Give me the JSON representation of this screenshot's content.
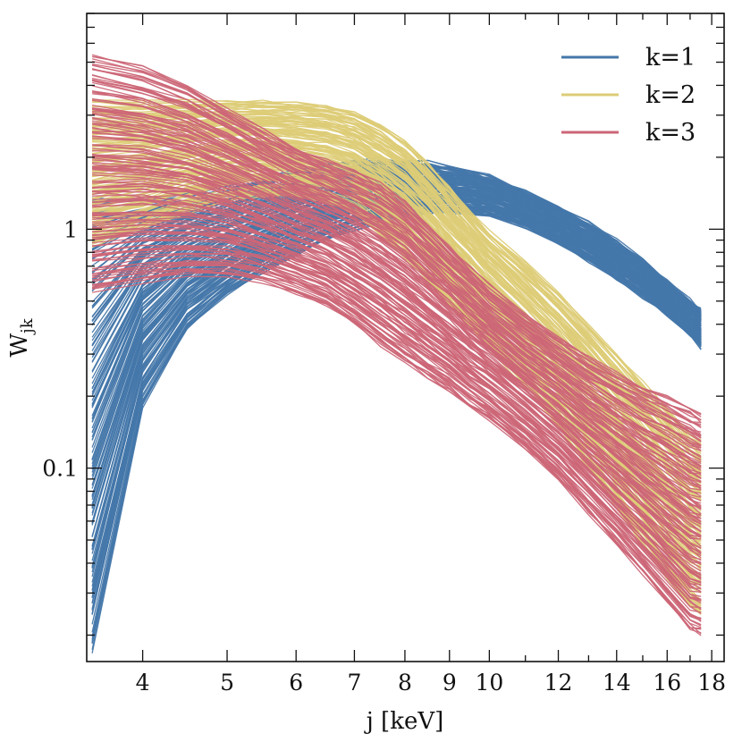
{
  "chart_data": {
    "type": "line",
    "xlabel": "j [keV]",
    "ylabel_main": "W",
    "ylabel_sub": "jk",
    "xscale": "log",
    "yscale": "log",
    "xlim": [
      3.45,
      18.6
    ],
    "ylim": [
      0.0155,
      8.0
    ],
    "x_ticks": [
      4,
      5,
      6,
      7,
      8,
      9,
      10,
      12,
      14,
      16,
      18
    ],
    "x_tick_labels": [
      "4",
      "5",
      "6",
      "7",
      "8",
      "9",
      "10",
      "12",
      "14",
      "16",
      "18"
    ],
    "y_major_ticks": [
      0.1,
      1
    ],
    "y_tick_labels": [
      "0.1",
      "1"
    ],
    "x": [
      3.5,
      4.0,
      4.5,
      5.0,
      5.5,
      6.0,
      6.5,
      7.0,
      7.5,
      8.0,
      8.5,
      9.0,
      9.5,
      10.0,
      11.0,
      12.0,
      13.0,
      14.0,
      15.0,
      16.0,
      17.0,
      17.5
    ],
    "legend_position": "top-right",
    "series": [
      {
        "name": "k=1",
        "color": "#4477aa",
        "band_low": [
          0.017,
          0.18,
          0.38,
          0.53,
          0.66,
          0.78,
          0.9,
          1.0,
          1.08,
          1.14,
          1.17,
          1.18,
          1.17,
          1.14,
          1.02,
          0.88,
          0.74,
          0.62,
          0.52,
          0.44,
          0.36,
          0.32
        ],
        "band_high": [
          1.32,
          1.32,
          1.38,
          1.5,
          1.63,
          1.78,
          1.88,
          1.92,
          1.94,
          1.93,
          1.89,
          1.83,
          1.75,
          1.66,
          1.45,
          1.25,
          1.06,
          0.89,
          0.74,
          0.61,
          0.5,
          0.46
        ]
      },
      {
        "name": "k=2",
        "color": "#ddcc77",
        "band_low": [
          0.85,
          1.0,
          1.18,
          1.32,
          1.38,
          1.38,
          1.3,
          1.15,
          0.95,
          0.76,
          0.6,
          0.48,
          0.39,
          0.32,
          0.22,
          0.15,
          0.1,
          0.068,
          0.048,
          0.034,
          0.026,
          0.024
        ],
        "band_high": [
          3.5,
          3.4,
          3.4,
          3.45,
          3.45,
          3.4,
          3.3,
          3.1,
          2.75,
          2.35,
          1.9,
          1.5,
          1.2,
          0.98,
          0.72,
          0.54,
          0.4,
          0.3,
          0.23,
          0.18,
          0.14,
          0.13
        ]
      },
      {
        "name": "k=3",
        "color": "#cc6677",
        "band_low": [
          0.55,
          0.6,
          0.64,
          0.64,
          0.6,
          0.54,
          0.48,
          0.4,
          0.33,
          0.28,
          0.24,
          0.21,
          0.18,
          0.16,
          0.12,
          0.09,
          0.065,
          0.048,
          0.036,
          0.027,
          0.021,
          0.02
        ],
        "band_high": [
          5.4,
          4.8,
          4.0,
          3.2,
          2.6,
          2.2,
          1.95,
          1.75,
          1.55,
          1.3,
          1.05,
          0.85,
          0.7,
          0.58,
          0.44,
          0.35,
          0.29,
          0.25,
          0.22,
          0.2,
          0.18,
          0.17
        ]
      }
    ]
  }
}
